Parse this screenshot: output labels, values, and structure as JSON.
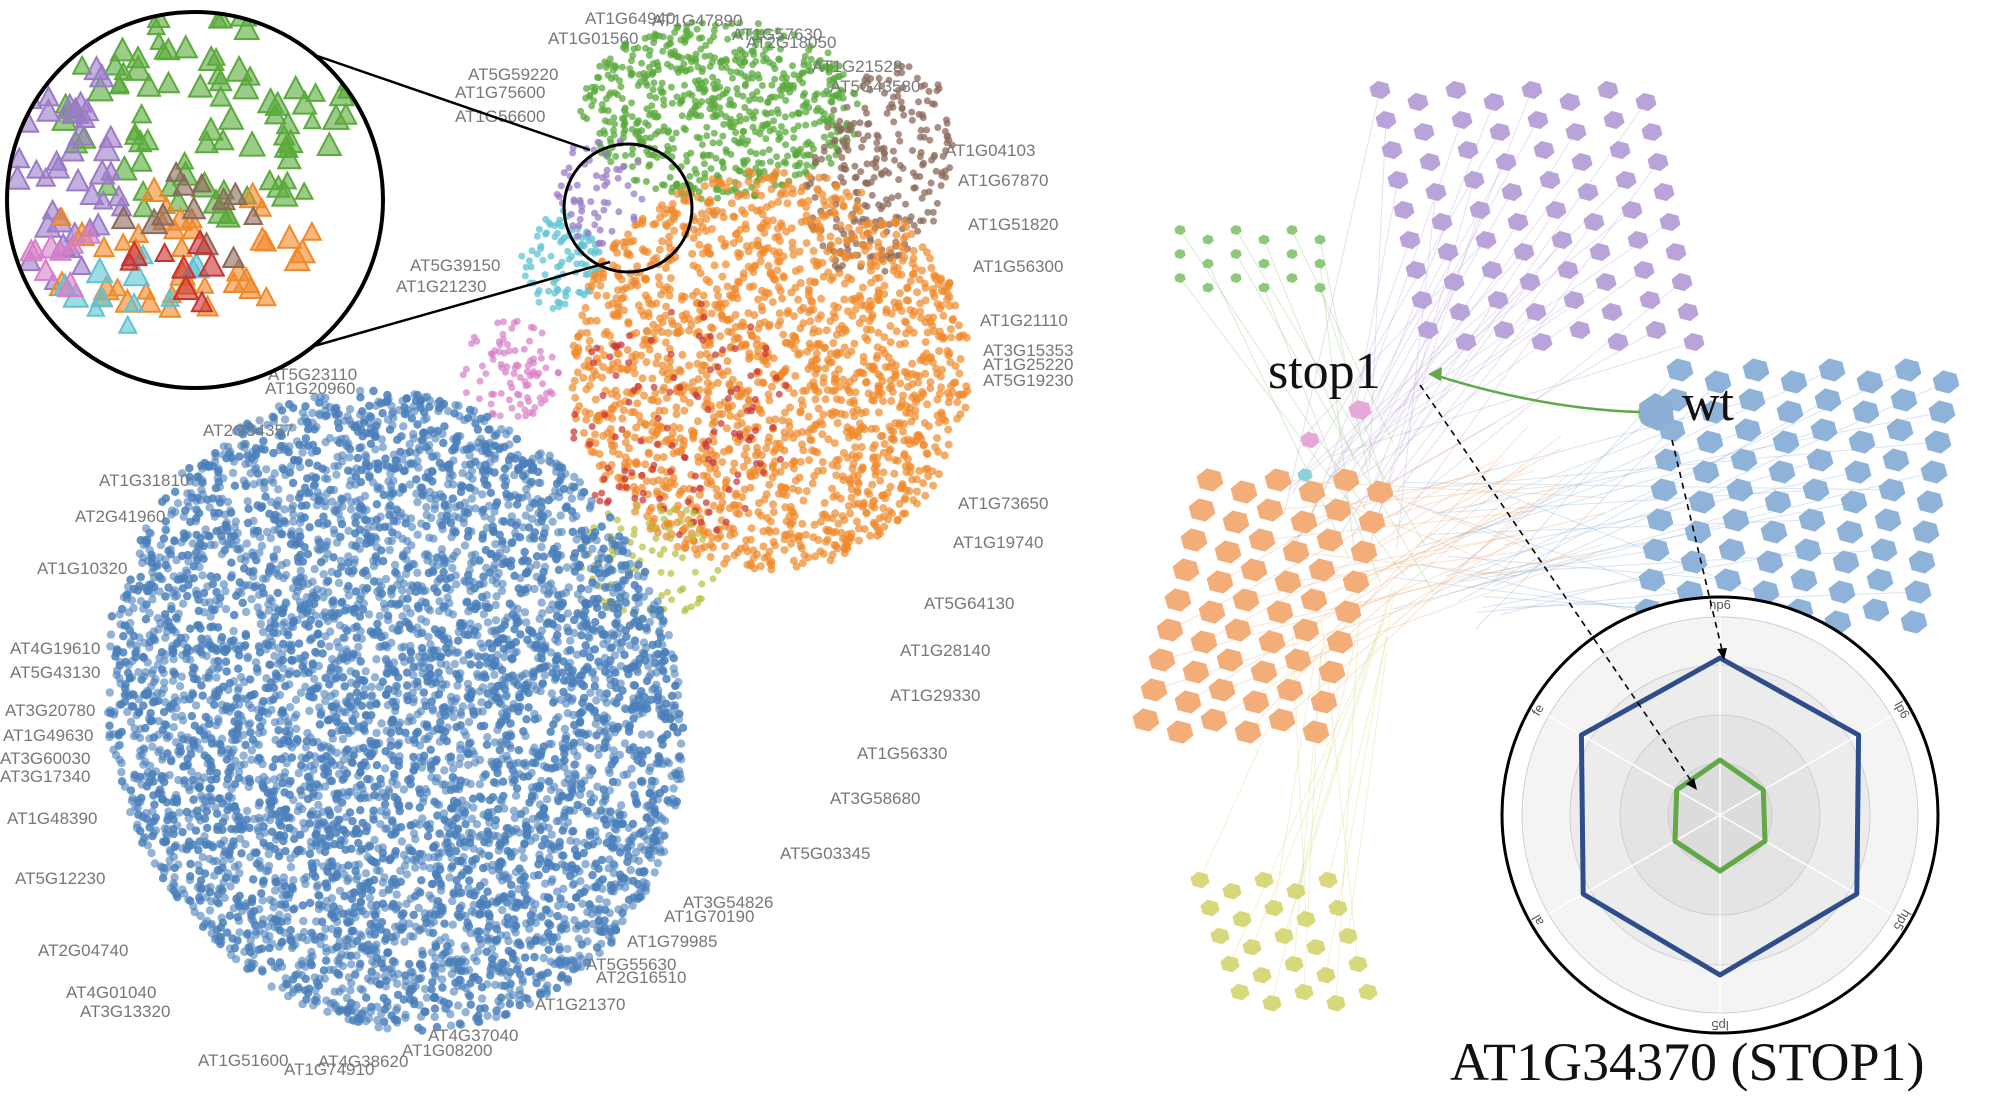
{
  "left_panel": {
    "gene_labels": [
      "AT1G64940",
      "AT1G47890",
      "AT1G01560",
      "AT1G57630",
      "AT2G18050",
      "AT1G21528",
      "AT5G59220",
      "AT5G43580",
      "AT1G75600",
      "AT1G56600",
      "AT1G04103",
      "AT1G67870",
      "AT1G51820",
      "AT5G39150",
      "AT1G56300",
      "AT1G21230",
      "AT1G21110",
      "AT3G15353",
      "AT1G25220",
      "AT5G19230",
      "AT5G23110",
      "AT1G20960",
      "AT2G34357",
      "AT1G31810",
      "AT2G41960",
      "AT1G73650",
      "AT1G19740",
      "AT1G10320",
      "AT5G64130",
      "AT4G19610",
      "AT1G28140",
      "AT5G43130",
      "AT1G29330",
      "AT3G20780",
      "AT1G49630",
      "AT3G60030",
      "AT3G17340",
      "AT1G56330",
      "AT3G58680",
      "AT1G48390",
      "AT5G03345",
      "AT5G12230",
      "AT3G54826",
      "AT1G70190",
      "AT2G04740",
      "AT1G79985",
      "AT5G55630",
      "AT2G16510",
      "AT4G01040",
      "AT3G13320",
      "AT1G21370",
      "AT4G37040",
      "AT1G08200",
      "AT1G51600",
      "AT4G38620",
      "AT1G74910"
    ],
    "cluster_colors": {
      "blue": "#4a7fba",
      "orange": "#f0892a",
      "green": "#5aaa3c",
      "purple": "#9b7bc8",
      "brown": "#8c6a5a",
      "cyan": "#5fc3d4",
      "pink": "#d77ec8",
      "red": "#c83232",
      "olive": "#b8bf3a"
    }
  },
  "right_panel": {
    "label_stop1": "stop1",
    "label_wt": "wt",
    "gene_title": "AT1G34370 (STOP1)",
    "radar": {
      "axes": [
        "hp6",
        "lp6",
        "hp5",
        "lp5",
        "al",
        "fe"
      ],
      "colors": {
        "wt": "#2d4e8a",
        "stop1": "#62a847"
      }
    },
    "cluster_colors": {
      "purple": "#b9a3d9",
      "blue": "#8fb2d9",
      "orange": "#f2ad78",
      "green": "#8ec97a",
      "yellow": "#d6d87a",
      "pink": "#e5a8d8",
      "cyan": "#8ed0d8"
    }
  }
}
